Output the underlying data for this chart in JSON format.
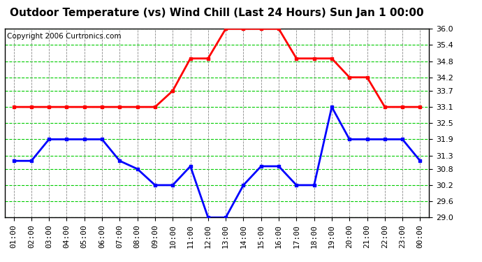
{
  "title": "Outdoor Temperature (vs) Wind Chill (Last 24 Hours) Sun Jan 1 00:00",
  "copyright": "Copyright 2006 Curtronics.com",
  "x_labels": [
    "01:00",
    "02:00",
    "03:00",
    "04:00",
    "05:00",
    "06:00",
    "07:00",
    "08:00",
    "09:00",
    "10:00",
    "11:00",
    "12:00",
    "13:00",
    "14:00",
    "15:00",
    "16:00",
    "17:00",
    "18:00",
    "19:00",
    "20:00",
    "21:00",
    "22:00",
    "23:00",
    "00:00"
  ],
  "ylim": [
    29.0,
    36.0
  ],
  "yticks": [
    29.0,
    29.6,
    30.2,
    30.8,
    31.3,
    31.9,
    32.5,
    33.1,
    33.7,
    34.2,
    34.8,
    35.4,
    36.0
  ],
  "red_line": [
    33.1,
    33.1,
    33.1,
    33.1,
    33.1,
    33.1,
    33.1,
    33.1,
    33.1,
    33.7,
    34.9,
    34.9,
    36.0,
    36.0,
    36.0,
    36.0,
    34.9,
    34.9,
    34.9,
    34.2,
    34.2,
    33.1,
    33.1,
    33.1
  ],
  "blue_line": [
    31.1,
    31.1,
    31.9,
    31.9,
    31.9,
    31.9,
    31.1,
    30.8,
    30.2,
    30.2,
    30.9,
    29.0,
    29.0,
    30.2,
    30.9,
    30.9,
    30.2,
    30.2,
    33.1,
    31.9,
    31.9,
    31.9,
    31.9,
    31.1
  ],
  "red_color": "#ff0000",
  "blue_color": "#0000ff",
  "bg_color": "#ffffff",
  "plot_bg_color": "#ffffff",
  "grid_h_color": "#00cc00",
  "grid_v_color": "#888888",
  "title_fontsize": 11,
  "copyright_fontsize": 7.5,
  "tick_fontsize": 8
}
